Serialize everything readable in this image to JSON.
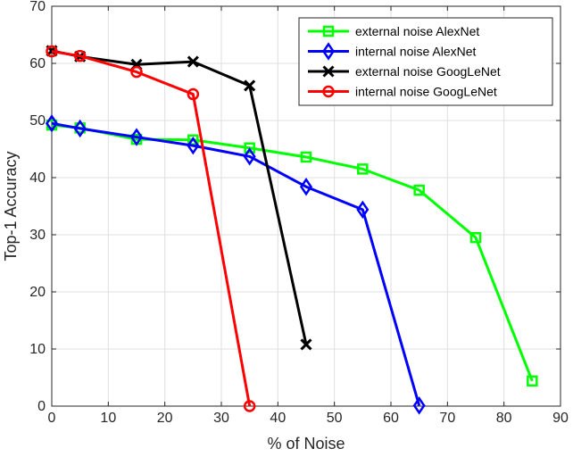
{
  "chart_data": {
    "type": "line",
    "title": "",
    "xlabel": "% of Noise",
    "ylabel": "Top-1 Accuracy",
    "xlim": [
      0,
      90
    ],
    "ylim": [
      0,
      70
    ],
    "xticks": [
      0,
      10,
      20,
      30,
      40,
      50,
      60,
      70,
      80,
      90
    ],
    "yticks": [
      0,
      10,
      20,
      30,
      40,
      50,
      60,
      70
    ],
    "grid": true,
    "legend_position": "top-right",
    "series": [
      {
        "name": "external noise AlexNet",
        "color": "#00ff00",
        "marker": "square",
        "x": [
          0,
          5,
          15,
          25,
          35,
          45,
          55,
          65,
          75,
          85
        ],
        "y": [
          49.2,
          48.7,
          46.7,
          46.6,
          45.2,
          43.6,
          41.5,
          37.8,
          29.5,
          4.4
        ]
      },
      {
        "name": "internal noise AlexNet",
        "color": "#0000ff",
        "marker": "diamond",
        "x": [
          0,
          5,
          15,
          25,
          35,
          45,
          55,
          65
        ],
        "y": [
          49.5,
          48.6,
          47.1,
          45.6,
          43.7,
          38.4,
          34.4,
          0.1
        ]
      },
      {
        "name": "external noise GoogLeNet",
        "color": "#000000",
        "marker": "x",
        "x": [
          0,
          5,
          15,
          25,
          35,
          45
        ],
        "y": [
          62.2,
          61.2,
          59.8,
          60.3,
          56.1,
          10.8
        ]
      },
      {
        "name": "internal noise GoogLeNet",
        "color": "#ff0000",
        "marker": "circle",
        "x": [
          0,
          5,
          15,
          25,
          35
        ],
        "y": [
          62.1,
          61.3,
          58.5,
          54.6,
          0.0
        ]
      }
    ]
  }
}
